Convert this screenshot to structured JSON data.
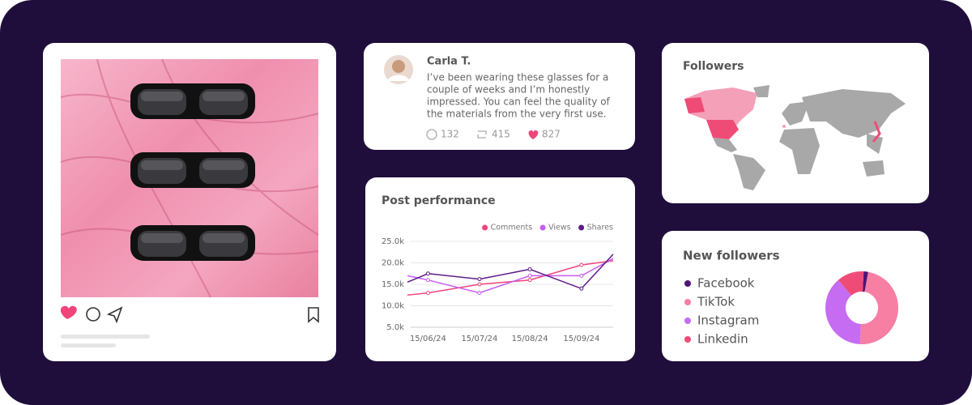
{
  "comment": {
    "name": "Carla T.",
    "text_lines": [
      "I’ve been wearing these glasses for a",
      "couple of weeks and I’m honestly",
      "impressed. You can feel the quality of",
      "the materials from the very first use."
    ],
    "replies": 132,
    "reposts": 415,
    "likes": 827
  },
  "followers_map": {
    "title": "Followers"
  },
  "chart_data": [
    {
      "type": "line",
      "title": "Post performance",
      "x": [
        null,
        "15/06/24",
        "15/07/24",
        "15/08/24",
        "15/09/24",
        null
      ],
      "series": [
        {
          "name": "Comments",
          "color": "#f0457a",
          "values": [
            12500,
            13000,
            15000,
            16000,
            19500,
            20500
          ]
        },
        {
          "name": "Views",
          "color": "#c85cf2",
          "values": [
            17000,
            16000,
            13000,
            17000,
            17000,
            21000
          ]
        },
        {
          "name": "Shares",
          "color": "#5e1c88",
          "values": [
            15500,
            17500,
            16200,
            18500,
            14000,
            22000
          ]
        }
      ],
      "ylim": [
        5000,
        25000
      ],
      "yticks": [
        {
          "value": 5000,
          "label": "5.0k"
        },
        {
          "value": 10000,
          "label": "10.0k"
        },
        {
          "value": 15000,
          "label": "15.0k"
        },
        {
          "value": 20000,
          "label": "20.0k"
        },
        {
          "value": 25000,
          "label": "25.0k"
        }
      ],
      "grid": true,
      "legend": "top-right"
    },
    {
      "type": "pie",
      "title": "New followers",
      "categories": [
        "Facebook",
        "TikTok",
        "Instagram",
        "Linkedin"
      ],
      "values": [
        2,
        48,
        38,
        12
      ],
      "colors": [
        "#4d1475",
        "#f77fa3",
        "#c66cf3",
        "#ef4b77"
      ],
      "donut": true
    }
  ]
}
